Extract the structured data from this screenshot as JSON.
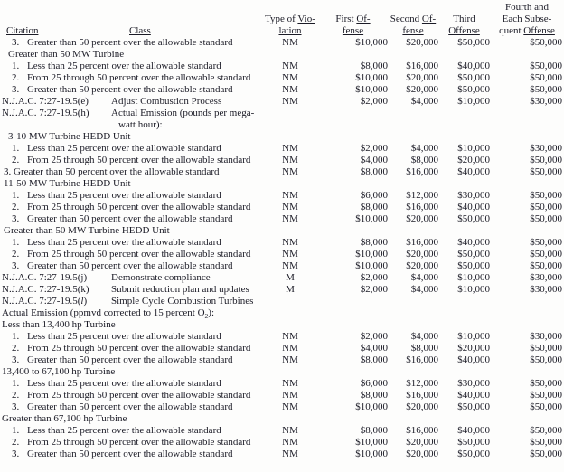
{
  "header": {
    "line1": {
      "fourth": "Fourth and"
    },
    "line2": {
      "violation_plain": "Type of ",
      "violation_u": "Vio-",
      "first_plain": "First ",
      "first_u": "Of-",
      "second_plain": "Second ",
      "second_u": "Of-",
      "third": "Third",
      "fourth": "Each Subse-"
    },
    "line3": {
      "citation": "Citation",
      "class": "Class",
      "violation_u": "lation",
      "first_u": "fense",
      "second_u": "fense",
      "third_u": "Offense",
      "fourth_plain": "quent ",
      "fourth_u": "Offense"
    }
  },
  "table": {
    "rows": [
      {
        "num": "3.",
        "c": "Greater than 50 percent over the allowable standard",
        "v": "NM",
        "m": [
          "$10,000",
          "$20,000",
          "$50,000",
          "$50,000"
        ]
      },
      {
        "c": "Greater than 50 MW Turbine",
        "ind": 2
      },
      {
        "num": "1.",
        "c": "Less than 25 percent over the allowable standard",
        "v": "NM",
        "m": [
          "$8,000",
          "$16,000",
          "$40,000",
          "$50,000"
        ]
      },
      {
        "num": "2.",
        "c": "From 25 through 50 percent over the allowable standard",
        "v": "NM",
        "m": [
          "$10,000",
          "$20,000",
          "$50,000",
          "$50,000"
        ]
      },
      {
        "num": "3.",
        "c": "Greater than 50 percent over the allowable standard",
        "v": "NM",
        "m": [
          "$10,000",
          "$20,000",
          "$50,000",
          "$50,000"
        ]
      },
      {
        "c": "N.J.A.C. 7:27-19.5(e)",
        "ind": 0,
        "cls": "Adjust Combustion Process",
        "v": "NM",
        "m": [
          "$2,000",
          "$4,000",
          "$10,000",
          "$30,000"
        ]
      },
      {
        "c": "N.J.A.C. 7:27-19.5(h)",
        "ind": 0,
        "cls": "Actual Emission (pounds per mega-"
      },
      {
        "cls": "watt hour):",
        "cont": true
      },
      {
        "c": "3-10 MW Turbine HEDD Unit",
        "ind": 2
      },
      {
        "num": "1.",
        "c": "Less than 25 percent over the allowable standard",
        "v": "NM",
        "m": [
          "$2,000",
          "$4,000",
          "$10,000",
          "$30,000"
        ]
      },
      {
        "num": "2.",
        "c": "From 25 through 50 percent over the allowable standard",
        "v": "NM",
        "m": [
          "$4,000",
          "$8,000",
          "$20,000",
          "$50,000"
        ]
      },
      {
        "c": "3. Greater than 50 percent over the allowable standard",
        "ind": 1,
        "v": "NM",
        "m": [
          "$8,000",
          "$16,000",
          "$40,000",
          "$50,000"
        ]
      },
      {
        "c": "11-50 MW Turbine HEDD Unit",
        "ind": 1
      },
      {
        "num": "1.",
        "c": "Less than 25 percent over the allowable standard",
        "v": "NM",
        "m": [
          "$6,000",
          "$12,000",
          "$30,000",
          "$50,000"
        ]
      },
      {
        "num": "2.",
        "c": "From 25 through 50 percent over the allowable standard",
        "v": "NM",
        "m": [
          "$8,000",
          "$16,000",
          "$40,000",
          "$50,000"
        ]
      },
      {
        "num": "3.",
        "c": "Greater than 50 percent over the allowable standard",
        "v": "NM",
        "m": [
          "$10,000",
          "$20,000",
          "$50,000",
          "$50,000"
        ]
      },
      {
        "c": "Greater than 50 MW Turbine HEDD Unit",
        "ind": 1
      },
      {
        "num": "1.",
        "c": "Less than 25 percent over the allowable standard",
        "v": "NM",
        "m": [
          "$8,000",
          "$16,000",
          "$40,000",
          "$50,000"
        ]
      },
      {
        "num": "2.",
        "c": "From 25 through 50 percent over the allowable standard",
        "v": "NM",
        "m": [
          "$10,000",
          "$20,000",
          "$50,000",
          "$50,000"
        ]
      },
      {
        "num": "3.",
        "c": "Greater than 50 percent over the allowable standard",
        "v": "NM",
        "m": [
          "$10,000",
          "$20,000",
          "$50,000",
          "$50,000"
        ]
      },
      {
        "c": "N.J.A.C. 7:27-19.5(j)",
        "ind": 0,
        "cls": "Demonstrate compliance",
        "v": "M",
        "m": [
          "$2,000",
          "$4,000",
          "$10,000",
          "$30,000"
        ]
      },
      {
        "c": "N.J.A.C. 7:27-19.5(k)",
        "ind": 0,
        "cls": "Submit reduction plan and updates",
        "v": "M",
        "m": [
          "$2,000",
          "$4,000",
          "$10,000",
          "$30,000"
        ]
      },
      {
        "cp": [
          {
            "t": "N.J.A.C. 7:27-19.5("
          },
          {
            "t": "l",
            "i": true
          },
          {
            "t": ")"
          }
        ],
        "ind": 0,
        "cls": "Simple Cycle Combustion Turbines"
      },
      {
        "cp": [
          {
            "t": "Actual Emission (ppmvd corrected to 15 percent O"
          },
          {
            "t": "2",
            "sub": true
          },
          {
            "t": "):"
          }
        ],
        "ind": 0
      },
      {
        "c": "Less than 13,400 hp Turbine",
        "ind": 0
      },
      {
        "num": "1.",
        "c": "Less than 25 percent over the allowable standard",
        "v": "NM",
        "m": [
          "$2,000",
          "$4,000",
          "$10,000",
          "$30,000"
        ]
      },
      {
        "num": "2.",
        "c": "From 25 through 50 percent over the allowable standard",
        "v": "NM",
        "m": [
          "$4,000",
          "$8,000",
          "$20,000",
          "$50,000"
        ]
      },
      {
        "num": "3.",
        "c": "Greater than 50 percent over the allowable standard",
        "v": "NM",
        "m": [
          "$8,000",
          "$16,000",
          "$40,000",
          "$50,000"
        ]
      },
      {
        "c": "13,400 to 67,100 hp Turbine",
        "ind": 0
      },
      {
        "num": "1.",
        "c": "Less than 25 percent over the allowable standard",
        "v": "NM",
        "m": [
          "$6,000",
          "$12,000",
          "$30,000",
          "$50,000"
        ]
      },
      {
        "num": "2.",
        "c": "From 25 through 50 percent over the allowable standard",
        "v": "NM",
        "m": [
          "$8,000",
          "$16,000",
          "$40,000",
          "$50,000"
        ]
      },
      {
        "num": "3.",
        "c": "Greater than 50 percent over the allowable standard",
        "v": "NM",
        "m": [
          "$10,000",
          "$20,000",
          "$50,000",
          "$50,000"
        ]
      },
      {
        "c": "Greater than 67,100 hp Turbine",
        "ind": 0
      },
      {
        "num": "1.",
        "c": "Less than 25 percent over the allowable standard",
        "v": "NM",
        "m": [
          "$8,000",
          "$16,000",
          "$40,000",
          "$50,000"
        ]
      },
      {
        "num": "2.",
        "c": "From 25 through 50 percent over the allowable standard",
        "v": "NM",
        "m": [
          "$10,000",
          "$20,000",
          "$50,000",
          "$50,000"
        ]
      },
      {
        "num": "3.",
        "c": "Greater than 50 percent over the allowable standard",
        "v": "NM",
        "m": [
          "$10,000",
          "$20,000",
          "$50,000",
          "$50,000"
        ]
      }
    ]
  }
}
